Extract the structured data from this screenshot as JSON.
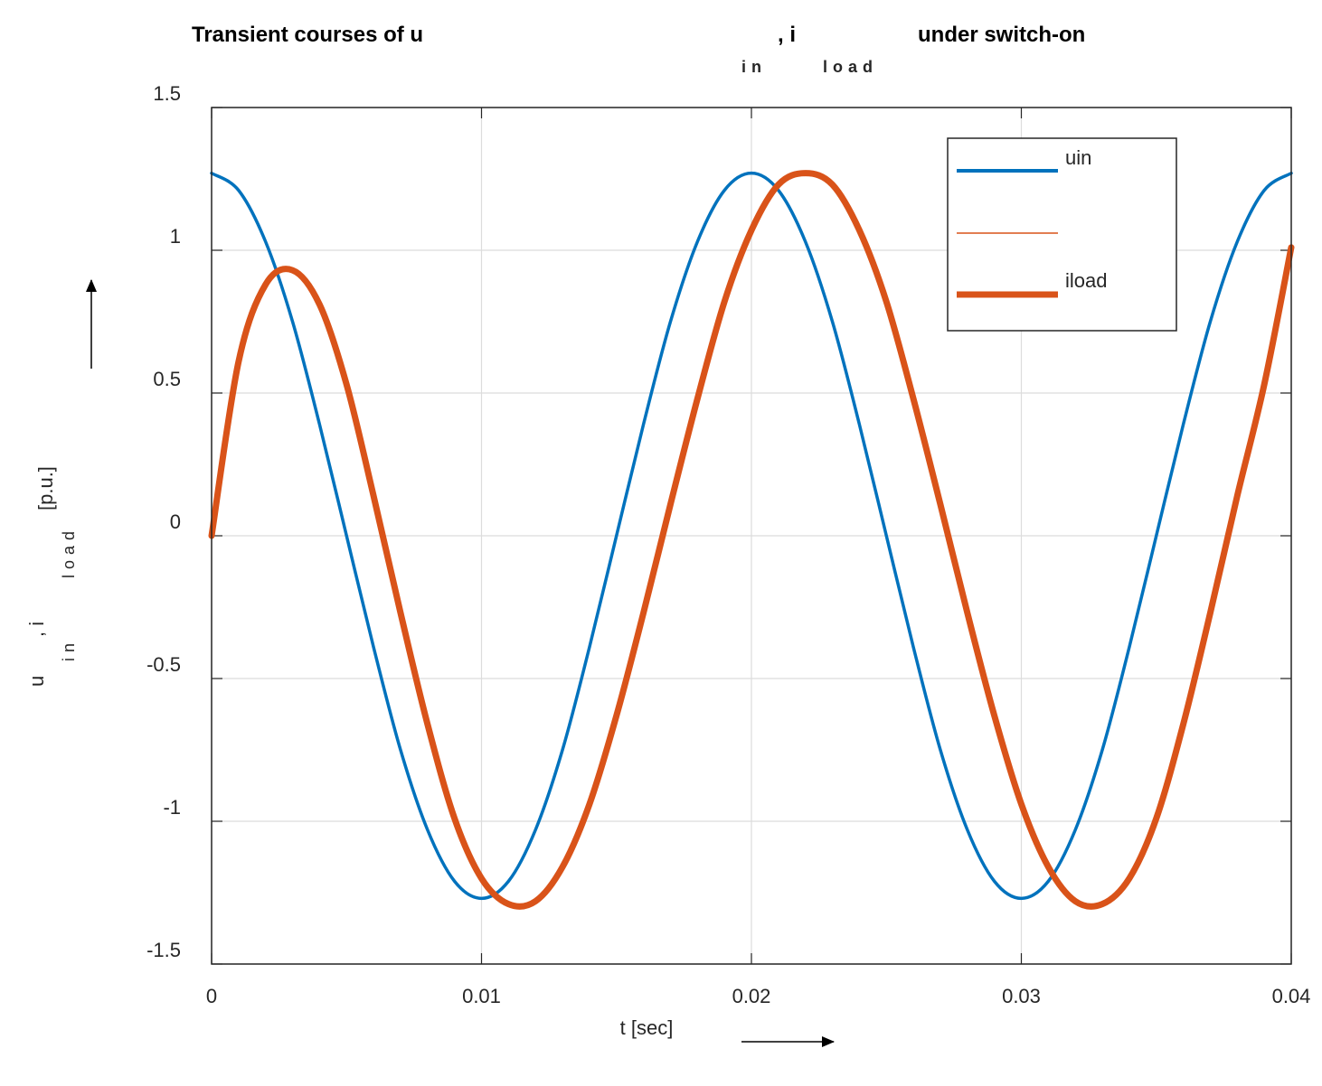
{
  "chart_data": {
    "type": "line",
    "title": {
      "part1": "Transient courses of u",
      "part1_sub": "in",
      "part2": ", i",
      "part2_sub": "load",
      "part3": " under switch-on"
    },
    "xlabel": "t [sec]",
    "ylabel": {
      "main1": "u",
      "sub1": "in",
      "main2": ", i",
      "sub2": "load",
      "unit": "[p.u.]"
    },
    "xlim": [
      0,
      0.04
    ],
    "ylim": [
      -1.5,
      1.5
    ],
    "xticks": [
      0,
      0.01,
      0.02,
      0.03,
      0.04
    ],
    "xtick_labels": [
      "0",
      "0.01",
      "0.02",
      "0.03",
      "0.04"
    ],
    "yticks": [
      -1.5,
      -1,
      -0.5,
      0,
      0.5,
      1,
      1.5
    ],
    "ytick_labels": [
      "-1.5",
      "-1",
      "-0.5",
      "0",
      "0.5",
      "1",
      "1.5"
    ],
    "grid": true,
    "legend_position": "top-right",
    "series": [
      {
        "name": "uin",
        "color": "#0072BD",
        "line_width": "thin",
        "x": [
          0,
          0.001,
          0.002,
          0.003,
          0.004,
          0.005,
          0.006,
          0.007,
          0.008,
          0.009,
          0.01,
          0.011,
          0.012,
          0.013,
          0.014,
          0.015,
          0.016,
          0.017,
          0.018,
          0.019,
          0.02,
          0.021,
          0.022,
          0.023,
          0.024,
          0.025,
          0.026,
          0.027,
          0.028,
          0.029,
          0.03,
          0.031,
          0.032,
          0.033,
          0.034,
          0.035,
          0.036,
          0.037,
          0.038,
          0.039,
          0.04
        ],
        "values": [
          1.27,
          1.21,
          1.03,
          0.75,
          0.39,
          0.0,
          -0.39,
          -0.75,
          -1.03,
          -1.21,
          -1.27,
          -1.21,
          -1.03,
          -0.75,
          -0.39,
          0.0,
          0.39,
          0.75,
          1.03,
          1.21,
          1.27,
          1.21,
          1.03,
          0.75,
          0.39,
          0.0,
          -0.39,
          -0.75,
          -1.03,
          -1.21,
          -1.27,
          -1.21,
          -1.03,
          -0.75,
          -0.39,
          0.0,
          0.39,
          0.75,
          1.03,
          1.21,
          1.27
        ]
      },
      {
        "name": "",
        "color": "#D95319",
        "line_width": "thin",
        "x": [],
        "values": []
      },
      {
        "name": "iload",
        "color": "#D95319",
        "line_width": "thick",
        "x": [
          0,
          0.001,
          0.002,
          0.003,
          0.004,
          0.005,
          0.006,
          0.007,
          0.008,
          0.009,
          0.01,
          0.011,
          0.012,
          0.013,
          0.014,
          0.015,
          0.016,
          0.017,
          0.018,
          0.019,
          0.02,
          0.021,
          0.022,
          0.023,
          0.024,
          0.025,
          0.026,
          0.027,
          0.028,
          0.029,
          0.03,
          0.031,
          0.032,
          0.033,
          0.034,
          0.035,
          0.036,
          0.037,
          0.038,
          0.039,
          0.04
        ],
        "values": [
          0.0,
          0.61,
          0.88,
          0.93,
          0.81,
          0.53,
          0.14,
          -0.27,
          -0.66,
          -0.99,
          -1.2,
          -1.29,
          -1.28,
          -1.16,
          -0.94,
          -0.63,
          -0.27,
          0.11,
          0.48,
          0.82,
          1.07,
          1.23,
          1.27,
          1.23,
          1.07,
          0.82,
          0.48,
          0.11,
          -0.27,
          -0.63,
          -0.94,
          -1.16,
          -1.28,
          -1.29,
          -1.2,
          -0.99,
          -0.66,
          -0.27,
          0.14,
          0.53,
          1.01
        ]
      }
    ]
  }
}
